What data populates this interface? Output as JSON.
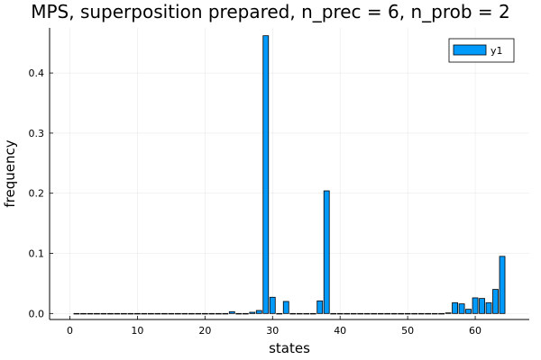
{
  "chart_data": {
    "type": "bar",
    "title": "MPS, superposition prepared, n_prec = 6, n_prob = 2",
    "xlabel": "states",
    "ylabel": "frequency",
    "xlim": [
      -3,
      68
    ],
    "ylim": [
      -0.01,
      0.475
    ],
    "xticks": [
      0,
      10,
      20,
      30,
      40,
      50,
      60
    ],
    "yticks": [
      0.0,
      0.1,
      0.2,
      0.3,
      0.4
    ],
    "ytick_labels": [
      "0.0",
      "0.1",
      "0.2",
      "0.3",
      "0.4"
    ],
    "grid": true,
    "legend_position": "top-right",
    "series": [
      {
        "name": "y1",
        "color": "#009AFA",
        "x": [
          1,
          2,
          3,
          4,
          5,
          6,
          7,
          8,
          9,
          10,
          11,
          12,
          13,
          14,
          15,
          16,
          17,
          18,
          19,
          20,
          21,
          22,
          23,
          24,
          25,
          26,
          27,
          28,
          29,
          30,
          31,
          32,
          33,
          34,
          35,
          36,
          37,
          38,
          39,
          40,
          41,
          42,
          43,
          44,
          45,
          46,
          47,
          48,
          49,
          50,
          51,
          52,
          53,
          54,
          55,
          56,
          57,
          58,
          59,
          60,
          61,
          62,
          63,
          64
        ],
        "values": [
          0,
          0,
          0,
          0,
          0,
          0,
          0,
          0,
          0,
          0,
          0,
          0,
          0,
          0,
          0,
          0,
          0,
          0,
          0,
          0,
          0,
          0,
          0,
          0.003,
          0,
          0,
          0.002,
          0.005,
          0.462,
          0.027,
          0,
          0.02,
          0,
          0,
          0,
          0,
          0.021,
          0.204,
          0,
          0,
          0,
          0,
          0,
          0,
          0,
          0,
          0,
          0,
          0,
          0,
          0,
          0,
          0,
          0,
          0,
          0.001,
          0.018,
          0.016,
          0.007,
          0.026,
          0.025,
          0.018,
          0.04,
          0.095
        ]
      }
    ]
  }
}
